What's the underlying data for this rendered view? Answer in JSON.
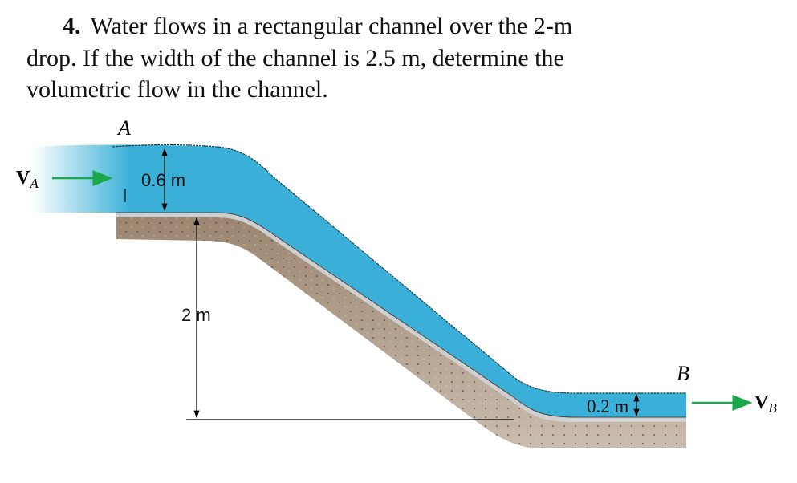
{
  "problem": {
    "number": "4.",
    "lines": [
      "Water flows in a rectangular channel over the 2-m",
      "drop. If the width of the channel is 2.5 m, determine the",
      "volumetric flow in the channel."
    ]
  },
  "diagram": {
    "point_a": "A",
    "point_b": "B",
    "velocity_a": {
      "symbol": "V",
      "subscript": "A"
    },
    "velocity_b": {
      "symbol": "V",
      "subscript": "B"
    },
    "depth_a": "0.6 m",
    "drop": "2 m",
    "depth_b": "0.2 m"
  }
}
